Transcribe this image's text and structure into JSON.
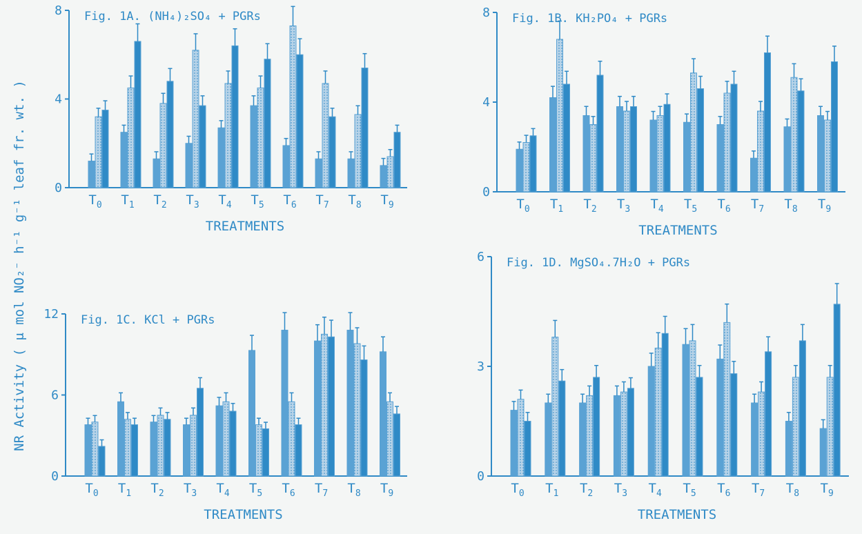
{
  "figure": {
    "ylabel": "NR Activity ( μ mol NO₂⁻ h⁻¹ g⁻¹ leaf fr. wt. )",
    "colors": {
      "axis": "#2f8ac6",
      "bar_dark": "#2f8ac6",
      "bar_dotted": "#b7d3e8",
      "bar_outline": "#5aa2d4"
    }
  },
  "chart_data": [
    {
      "type": "bar",
      "title": "Fig. 1A. (NH₄)₂SO₄ + PGRs",
      "xlabel": "TREATMENTS",
      "categories": [
        "T0",
        "T1",
        "T2",
        "T3",
        "T4",
        "T5",
        "T6",
        "T7",
        "T8",
        "T9"
      ],
      "ylim": [
        0,
        8
      ],
      "yticks": [
        0,
        4,
        8
      ],
      "series": [
        {
          "values": [
            1.2,
            2.5,
            1.3,
            2.0,
            2.7,
            3.7,
            1.9,
            1.3,
            1.3,
            1.0
          ]
        },
        {
          "values": [
            3.2,
            4.5,
            3.8,
            6.2,
            4.7,
            4.5,
            7.3,
            4.7,
            3.3,
            1.4
          ]
        },
        {
          "values": [
            3.5,
            6.6,
            4.8,
            3.7,
            6.4,
            5.8,
            6.0,
            3.2,
            5.4,
            2.5
          ]
        }
      ]
    },
    {
      "type": "bar",
      "title": "Fig. 1B. KH₂PO₄ + PGRs",
      "xlabel": "TREATMENTS",
      "categories": [
        "T0",
        "T1",
        "T2",
        "T3",
        "T4",
        "T5",
        "T6",
        "T7",
        "T8",
        "T9"
      ],
      "ylim": [
        0,
        8
      ],
      "yticks": [
        0,
        4,
        8
      ],
      "series": [
        {
          "values": [
            1.9,
            4.2,
            3.4,
            3.8,
            3.2,
            3.1,
            3.0,
            1.5,
            2.9,
            3.4
          ]
        },
        {
          "values": [
            2.2,
            6.8,
            3.0,
            3.6,
            3.4,
            5.3,
            4.4,
            3.6,
            5.1,
            3.2
          ]
        },
        {
          "values": [
            2.5,
            4.8,
            5.2,
            3.8,
            3.9,
            4.6,
            4.8,
            6.2,
            4.5,
            5.8
          ]
        }
      ]
    },
    {
      "type": "bar",
      "title": "Fig. 1C. KCl + PGRs",
      "xlabel": "TREATMENTS",
      "categories": [
        "T0",
        "T1",
        "T2",
        "T3",
        "T4",
        "T5",
        "T6",
        "T7",
        "T8",
        "T9"
      ],
      "ylim": [
        0,
        12
      ],
      "yticks": [
        0,
        6,
        12
      ],
      "series": [
        {
          "values": [
            3.8,
            5.5,
            4.0,
            3.8,
            5.2,
            9.3,
            10.8,
            10.0,
            10.8,
            9.2
          ]
        },
        {
          "values": [
            4.0,
            4.2,
            4.5,
            4.5,
            5.5,
            3.8,
            5.5,
            10.5,
            9.8,
            5.5
          ]
        },
        {
          "values": [
            2.2,
            3.8,
            4.2,
            6.5,
            4.8,
            3.5,
            3.8,
            10.3,
            8.6,
            4.6
          ]
        }
      ]
    },
    {
      "type": "bar",
      "title": "Fig. 1D. MgSO₄.7H₂O + PGRs",
      "xlabel": "TREATMENTS",
      "categories": [
        "T0",
        "T1",
        "T2",
        "T3",
        "T4",
        "T5",
        "T6",
        "T7",
        "T8",
        "T9"
      ],
      "ylim": [
        0,
        6
      ],
      "yticks": [
        0,
        3,
        6
      ],
      "series": [
        {
          "values": [
            1.8,
            2.0,
            2.0,
            2.2,
            3.0,
            3.6,
            3.2,
            2.0,
            1.5,
            1.3
          ]
        },
        {
          "values": [
            2.1,
            3.8,
            2.2,
            2.3,
            3.5,
            3.7,
            4.2,
            2.3,
            2.7,
            2.7
          ]
        },
        {
          "values": [
            1.5,
            2.6,
            2.7,
            2.4,
            3.9,
            2.7,
            2.8,
            3.4,
            3.7,
            4.7
          ]
        }
      ]
    }
  ]
}
